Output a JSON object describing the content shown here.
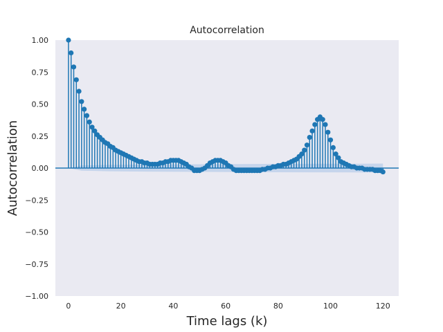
{
  "chart_data": {
    "type": "stem",
    "title": "Autocorrelation",
    "xlabel": "Time lags (k)",
    "ylabel": "Autocorrelation",
    "xlim": [
      -5,
      126
    ],
    "ylim": [
      -1.0,
      1.0
    ],
    "xticks": [
      0,
      20,
      40,
      60,
      80,
      100,
      120
    ],
    "xtick_labels": [
      "0",
      "20",
      "40",
      "60",
      "80",
      "100",
      "120"
    ],
    "yticks": [
      -1.0,
      -0.75,
      -0.5,
      -0.25,
      0.0,
      0.25,
      0.5,
      0.75,
      1.0
    ],
    "ytick_labels": [
      "−1.00",
      "−0.75",
      "−0.50",
      "−0.25",
      "0.00",
      "0.25",
      "0.50",
      "0.75",
      "1.00"
    ],
    "grid": false,
    "colors": {
      "stem": "#1f77b4",
      "background": "#eaeaf2",
      "confidence_band": "#aec7e8"
    },
    "series": [
      {
        "lags": [
          0,
          1,
          2,
          3,
          4,
          5,
          6,
          7,
          8,
          9,
          10,
          11,
          12,
          13,
          14,
          15,
          16,
          17,
          18,
          19,
          20,
          21,
          22,
          23,
          24,
          25,
          26,
          27,
          28,
          29,
          30,
          31,
          32,
          33,
          34,
          35,
          36,
          37,
          38,
          39,
          40,
          41,
          42,
          43,
          44,
          45,
          46,
          47,
          48,
          49,
          50,
          51,
          52,
          53,
          54,
          55,
          56,
          57,
          58,
          59,
          60,
          61,
          62,
          63,
          64,
          65,
          66,
          67,
          68,
          69,
          70,
          71,
          72,
          73,
          74,
          75,
          76,
          77,
          78,
          79,
          80,
          81,
          82,
          83,
          84,
          85,
          86,
          87,
          88,
          89,
          90,
          91,
          92,
          93,
          94,
          95,
          96,
          97,
          98,
          99,
          100,
          101,
          102,
          103,
          104,
          105,
          106,
          107,
          108,
          109,
          110,
          111,
          112,
          113,
          114,
          115,
          116,
          117,
          118,
          119,
          120
        ],
        "values": [
          1.0,
          0.9,
          0.79,
          0.69,
          0.6,
          0.52,
          0.46,
          0.41,
          0.36,
          0.32,
          0.29,
          0.26,
          0.24,
          0.22,
          0.2,
          0.19,
          0.17,
          0.16,
          0.14,
          0.13,
          0.12,
          0.11,
          0.1,
          0.09,
          0.08,
          0.07,
          0.06,
          0.05,
          0.05,
          0.04,
          0.04,
          0.03,
          0.03,
          0.03,
          0.03,
          0.04,
          0.04,
          0.05,
          0.05,
          0.06,
          0.06,
          0.06,
          0.06,
          0.05,
          0.04,
          0.03,
          0.01,
          0.0,
          -0.02,
          -0.02,
          -0.02,
          -0.01,
          0.0,
          0.02,
          0.04,
          0.05,
          0.06,
          0.06,
          0.06,
          0.05,
          0.04,
          0.02,
          0.01,
          -0.01,
          -0.02,
          -0.02,
          -0.02,
          -0.02,
          -0.02,
          -0.02,
          -0.02,
          -0.02,
          -0.02,
          -0.02,
          -0.01,
          -0.01,
          0.0,
          0.0,
          0.01,
          0.01,
          0.02,
          0.02,
          0.03,
          0.03,
          0.04,
          0.05,
          0.06,
          0.07,
          0.09,
          0.11,
          0.14,
          0.18,
          0.24,
          0.29,
          0.34,
          0.38,
          0.4,
          0.38,
          0.34,
          0.28,
          0.22,
          0.16,
          0.11,
          0.08,
          0.05,
          0.04,
          0.03,
          0.02,
          0.01,
          0.01,
          0.0,
          0.0,
          0.0,
          -0.01,
          -0.01,
          -0.01,
          -0.01,
          -0.02,
          -0.02,
          -0.02,
          -0.03
        ]
      }
    ],
    "confidence_band": {
      "lags": [
        0,
        5,
        15,
        30,
        50,
        70,
        90,
        110,
        120
      ],
      "halfwidth": [
        0.0,
        0.02,
        0.025,
        0.028,
        0.03,
        0.032,
        0.033,
        0.034,
        0.035
      ]
    }
  }
}
